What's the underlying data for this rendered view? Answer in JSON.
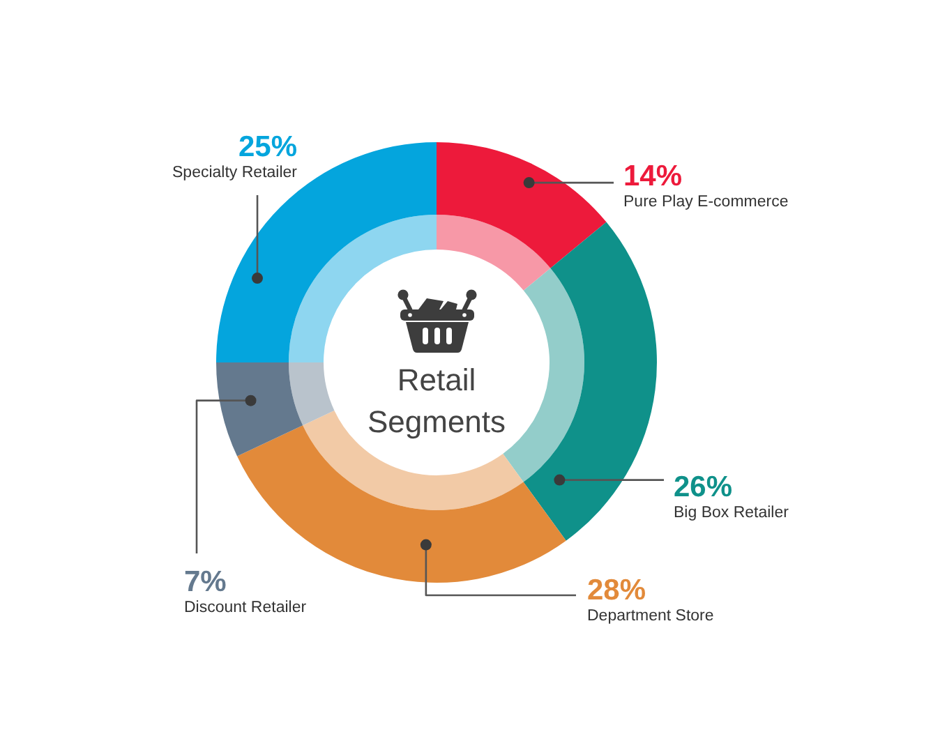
{
  "chart_data": {
    "type": "donut",
    "title": "Retail Segments",
    "categories": [
      "Pure Play E-commerce",
      "Big Box Retailer",
      "Department Store",
      "Discount Retailer",
      "Specialty Retailer"
    ],
    "series": [
      {
        "values": [
          14,
          26,
          28,
          7,
          25
        ],
        "colors": [
          "#ed1a3b",
          "#0f918a",
          "#e28a3a",
          "#64798e",
          "#04a5dd"
        ],
        "value_labels": [
          "14%",
          "26%",
          "28%",
          "7%",
          "25%"
        ]
      },
      {
        "values": [
          14,
          26,
          28,
          7,
          25
        ],
        "colors": [
          "#f798a7",
          "#93cdca",
          "#f2caa6",
          "#b9c3cc",
          "#8ed6f0"
        ]
      }
    ]
  }
}
